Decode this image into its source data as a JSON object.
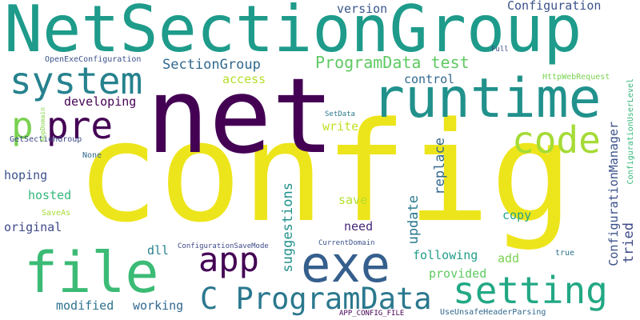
{
  "words": [
    {
      "text": "config",
      "color": "#EDE51B"
    },
    {
      "text": "net",
      "color": "#440154"
    },
    {
      "text": "NetSectionGroup",
      "color": "#1E9B8A"
    },
    {
      "text": "runtime",
      "color": "#21918C"
    },
    {
      "text": "exe",
      "color": "#355F8D"
    },
    {
      "text": "file",
      "color": "#3BBB75"
    },
    {
      "text": "app",
      "color": "#440154"
    },
    {
      "text": "system",
      "color": "#26828E"
    },
    {
      "text": "pre",
      "color": "#440154"
    },
    {
      "text": "p",
      "color": "#7AD151"
    },
    {
      "text": "code",
      "color": "#A5DB36"
    },
    {
      "text": "setting",
      "color": "#22A884"
    },
    {
      "text": "C ProgramData",
      "color": "#2A788E"
    },
    {
      "text": "ProgramData test",
      "color": "#5EC962"
    },
    {
      "text": "SectionGroup",
      "color": "#31688E"
    },
    {
      "text": "Configuration",
      "color": "#3B528B"
    },
    {
      "text": "version",
      "color": "#39568C"
    },
    {
      "text": "access",
      "color": "#B5DE2B"
    },
    {
      "text": "control",
      "color": "#31688E"
    },
    {
      "text": "developing",
      "color": "#440154"
    },
    {
      "text": "write",
      "color": "#C2DF23"
    },
    {
      "text": "hoping",
      "color": "#3B528B"
    },
    {
      "text": "hosted",
      "color": "#35B779"
    },
    {
      "text": "original",
      "color": "#3E4989"
    },
    {
      "text": "save",
      "color": "#B5DE2B"
    },
    {
      "text": "need",
      "color": "#482677"
    },
    {
      "text": "copy",
      "color": "#21A585"
    },
    {
      "text": "following",
      "color": "#1F9E89"
    },
    {
      "text": "add",
      "color": "#7AD151"
    },
    {
      "text": "provided",
      "color": "#5EC962"
    },
    {
      "text": "dll",
      "color": "#26828E"
    },
    {
      "text": "modified",
      "color": "#2C728E"
    },
    {
      "text": "working",
      "color": "#31688E"
    },
    {
      "text": "replace",
      "color": "#31688E"
    },
    {
      "text": "update",
      "color": "#2A788E"
    },
    {
      "text": "suggestions",
      "color": "#21918C"
    },
    {
      "text": "tried",
      "color": "#3E4989"
    },
    {
      "text": "ConfigurationManager",
      "color": "#3B528B"
    },
    {
      "text": "OpenExeConfiguration",
      "color": "#3B528B"
    },
    {
      "text": "GetSectionGroup",
      "color": "#3E4989"
    },
    {
      "text": "None",
      "color": "#31688E"
    },
    {
      "text": "SaveAs",
      "color": "#A5DB36"
    },
    {
      "text": "AppDomain",
      "color": "#86D549"
    },
    {
      "text": "SetData",
      "color": "#2A788E"
    },
    {
      "text": "Full",
      "color": "#3E4989"
    },
    {
      "text": "HttpWebRequest",
      "color": "#7AD151"
    },
    {
      "text": "ConfigurationUserLevel",
      "color": "#35B779"
    },
    {
      "text": "ConfigurationSaveMode",
      "color": "#3E4989"
    },
    {
      "text": "CurrentDomain",
      "color": "#3B528B"
    },
    {
      "text": "true",
      "color": "#2C728E"
    },
    {
      "text": "APP_CONFIG_FILE",
      "color": "#440154"
    },
    {
      "text": "UseUnsafeHeaderParsing",
      "color": "#31688E"
    }
  ]
}
